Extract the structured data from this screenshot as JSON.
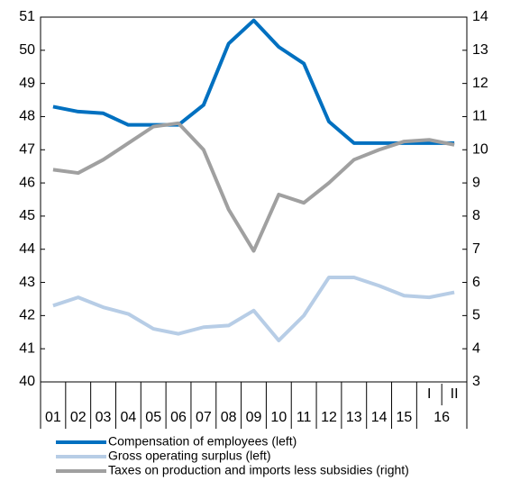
{
  "chart_data": {
    "type": "line",
    "categories": [
      "01",
      "02",
      "03",
      "04",
      "05",
      "06",
      "07",
      "08",
      "09",
      "10",
      "11",
      "12",
      "13",
      "14",
      "15",
      "I",
      "II"
    ],
    "category_group": "16",
    "series": [
      {
        "name": "Compensation of employees (left)",
        "color": "#0070c0",
        "axis": "y",
        "values": [
          48.3,
          48.15,
          48.1,
          47.75,
          47.75,
          47.75,
          48.35,
          50.2,
          50.9,
          50.1,
          49.6,
          47.85,
          47.2,
          47.2,
          47.2,
          47.2,
          47.2
        ]
      },
      {
        "name": "Gross operating surplus (left)",
        "color": "#b7cde6",
        "axis": "y",
        "values": [
          42.3,
          42.55,
          42.25,
          42.05,
          41.6,
          41.45,
          41.65,
          41.7,
          42.15,
          41.25,
          42.0,
          43.15,
          43.15,
          42.9,
          42.6,
          42.55,
          42.7
        ]
      },
      {
        "name": "Taxes on production and imports less subsidies (right)",
        "color": "#a0a0a0",
        "axis": "y2",
        "values": [
          9.4,
          9.3,
          9.7,
          10.2,
          10.7,
          10.8,
          10.0,
          8.2,
          6.95,
          8.65,
          8.4,
          9.0,
          9.7,
          10.0,
          10.25,
          10.3,
          10.15
        ]
      }
    ],
    "ylim": [
      40,
      51
    ],
    "yticks": [
      40,
      41,
      42,
      43,
      44,
      45,
      46,
      47,
      48,
      49,
      50,
      51
    ],
    "y2lim": [
      3,
      14
    ],
    "y2ticks": [
      3,
      4,
      5,
      6,
      7,
      8,
      9,
      10,
      11,
      12,
      13,
      14
    ]
  }
}
